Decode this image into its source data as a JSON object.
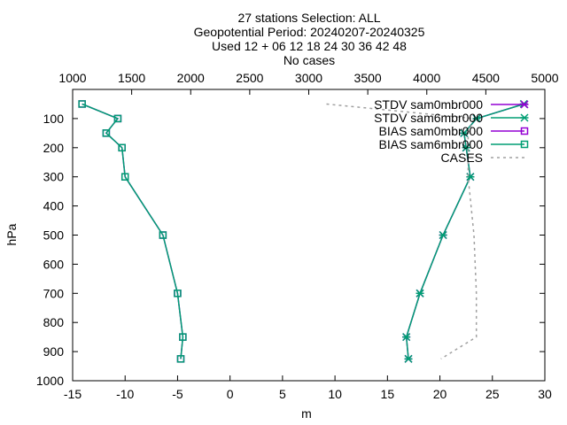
{
  "chart_data": {
    "type": "line",
    "title_lines": [
      "27 stations Selection: ALL",
      "Geopotential  Period: 20240207-20240325",
      "Used 12 + 06 12 18 24 30 36 42 48",
      "No cases"
    ],
    "xlabel": "m",
    "ylabel": "hPa",
    "xlim": [
      -15,
      30
    ],
    "ylim": [
      1000,
      0
    ],
    "x_ticks": [
      "-15",
      "-10",
      "-5",
      "0",
      "5",
      "10",
      "15",
      "20",
      "25",
      "30"
    ],
    "x_tick_values": [
      -15,
      -10,
      -5,
      0,
      5,
      10,
      15,
      20,
      25,
      30
    ],
    "y_ticks": [
      "100",
      "200",
      "300",
      "400",
      "500",
      "600",
      "700",
      "800",
      "900",
      "1000"
    ],
    "y_tick_values": [
      100,
      200,
      300,
      400,
      500,
      600,
      700,
      800,
      900,
      1000
    ],
    "x2lim": [
      1000,
      5000
    ],
    "x2_ticks": [
      "1000",
      "1500",
      "2000",
      "2500",
      "3000",
      "3500",
      "4000",
      "4500",
      "5000"
    ],
    "x2_tick_values": [
      1000,
      1500,
      2000,
      2500,
      3000,
      3500,
      4000,
      4500,
      5000
    ],
    "legend_position": "top-right",
    "series": [
      {
        "name": "STDV sam0mbr000",
        "color": "#9400d3",
        "marker": "star",
        "points": [
          [
            28.0,
            50
          ],
          [
            23.5,
            100
          ],
          [
            22.3,
            150
          ],
          [
            22.5,
            200
          ],
          [
            22.9,
            300
          ],
          [
            20.3,
            500
          ],
          [
            18.1,
            700
          ],
          [
            16.8,
            850
          ],
          [
            17.0,
            925
          ]
        ]
      },
      {
        "name": "STDV sam6mbr000",
        "color": "#009e73",
        "marker": "star",
        "points": [
          [
            28.0,
            50
          ],
          [
            23.5,
            100
          ],
          [
            22.3,
            150
          ],
          [
            22.5,
            200
          ],
          [
            22.9,
            300
          ],
          [
            20.3,
            500
          ],
          [
            18.1,
            700
          ],
          [
            16.8,
            850
          ],
          [
            17.0,
            925
          ]
        ]
      },
      {
        "name": "BIAS sam0mbr000",
        "color": "#9400d3",
        "marker": "square",
        "points": [
          [
            -14.1,
            50
          ],
          [
            -10.7,
            100
          ],
          [
            -11.8,
            150
          ],
          [
            -10.3,
            200
          ],
          [
            -10.0,
            300
          ],
          [
            -6.4,
            500
          ],
          [
            -5.0,
            700
          ],
          [
            -4.5,
            850
          ],
          [
            -4.7,
            925
          ]
        ]
      },
      {
        "name": "BIAS sam6mbr000",
        "color": "#009e73",
        "marker": "square",
        "points": [
          [
            -14.1,
            50
          ],
          [
            -10.7,
            100
          ],
          [
            -11.8,
            150
          ],
          [
            -10.3,
            200
          ],
          [
            -10.0,
            300
          ],
          [
            -6.4,
            500
          ],
          [
            -5.0,
            700
          ],
          [
            -4.5,
            850
          ],
          [
            -4.7,
            925
          ]
        ]
      },
      {
        "name": "CASES",
        "color": "#a0a0a0",
        "marker": "none",
        "dashed": true,
        "axis": "x2",
        "points": [
          [
            3150,
            50
          ],
          [
            4400,
            100
          ],
          [
            4350,
            150
          ],
          [
            4350,
            200
          ],
          [
            4350,
            300
          ],
          [
            4400,
            500
          ],
          [
            4420,
            700
          ],
          [
            4420,
            850
          ],
          [
            4120,
            925
          ]
        ]
      }
    ]
  }
}
